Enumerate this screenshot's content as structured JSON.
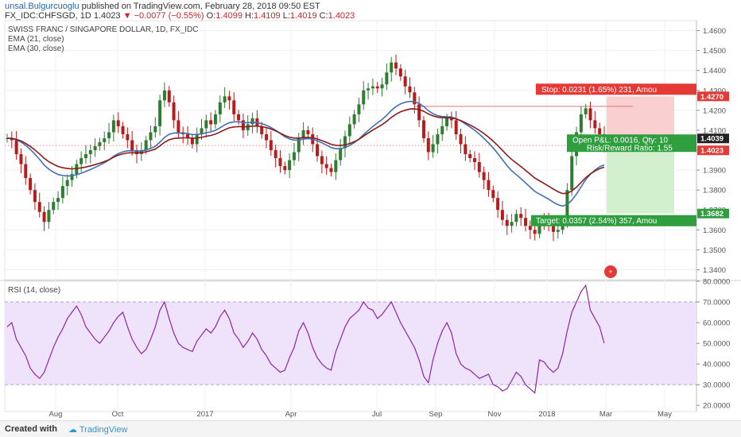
{
  "header": {
    "user": "unsal.Bulgurcuoglu",
    "published": "published on TradingView.com, February 28, 2018 09:50 EST",
    "symbol": "FX_IDC:CHFSGD, 1D",
    "last": "1.4023",
    "change": "−0.0077 (−0.55%)",
    "o_label": "O:",
    "o": "1.4099",
    "h_label": "H:",
    "h": "1.4109",
    "l_label": "L:",
    "l": "1.4019",
    "c_label": "C:",
    "c": "1.4023"
  },
  "footer": {
    "created": "Created with",
    "brand": "TradingView"
  },
  "chart_data": [
    {
      "type": "candlestick",
      "title": "SWISS FRANC / SINGAPORE DOLLAR, 1D, FX_IDC",
      "indicators": [
        "EMA (21, close)",
        "EMA (30, close)"
      ],
      "ylim": [
        1.335,
        1.465
      ],
      "ytick_labels": [
        "1.4600",
        "1.4500",
        "1.4400",
        "1.4300",
        "1.4200",
        "1.4100",
        "1.4000",
        "1.3900",
        "1.3800",
        "1.3700",
        "1.3600",
        "1.3500",
        "1.3400"
      ],
      "yticks": [
        1.46,
        1.45,
        1.44,
        1.43,
        1.42,
        1.41,
        1.4,
        1.39,
        1.38,
        1.37,
        1.36,
        1.35,
        1.34
      ],
      "xtick_labels": [
        "Aug",
        "Oct",
        "2017",
        "Apr",
        "Jul",
        "Sep",
        "Nov",
        "2018",
        "Mar",
        "May"
      ],
      "close_series": [
        1.406,
        1.405,
        1.398,
        1.393,
        1.386,
        1.38,
        1.374,
        1.369,
        1.364,
        1.37,
        1.374,
        1.376,
        1.382,
        1.385,
        1.388,
        1.393,
        1.396,
        1.398,
        1.4,
        1.402,
        1.404,
        1.406,
        1.409,
        1.415,
        1.412,
        1.408,
        1.405,
        1.4,
        1.398,
        1.4,
        1.405,
        1.409,
        1.412,
        1.425,
        1.43,
        1.424,
        1.415,
        1.409,
        1.408,
        1.406,
        1.403,
        1.408,
        1.411,
        1.415,
        1.413,
        1.418,
        1.424,
        1.427,
        1.425,
        1.418,
        1.415,
        1.41,
        1.413,
        1.416,
        1.412,
        1.408,
        1.405,
        1.4,
        1.396,
        1.392,
        1.39,
        1.395,
        1.399,
        1.406,
        1.41,
        1.408,
        1.403,
        1.397,
        1.393,
        1.391,
        1.389,
        1.395,
        1.401,
        1.407,
        1.413,
        1.418,
        1.423,
        1.43,
        1.431,
        1.432,
        1.431,
        1.433,
        1.439,
        1.444,
        1.441,
        1.437,
        1.432,
        1.429,
        1.423,
        1.415,
        1.406,
        1.399,
        1.403,
        1.408,
        1.412,
        1.416,
        1.415,
        1.408,
        1.403,
        1.398,
        1.396,
        1.394,
        1.389,
        1.385,
        1.38,
        1.376,
        1.37,
        1.365,
        1.362,
        1.364,
        1.368,
        1.366,
        1.362,
        1.36,
        1.358,
        1.365,
        1.364,
        1.362,
        1.359,
        1.36,
        1.365,
        1.38,
        1.397,
        1.409,
        1.418,
        1.421,
        1.415,
        1.411,
        1.408,
        1.4023
      ],
      "last_price": "1.4023",
      "price_labels": [
        "1.4270",
        "1.4039",
        "1.4023",
        "1.3682"
      ],
      "position": {
        "stop_label": "Stop: 0.0231 (1.65%) 231, Amou",
        "stop_price": 1.427,
        "entry_price": 1.4039,
        "target_label": "Target: 0.0357 (2.54%) 357, Amou",
        "target_price": 1.3682,
        "open_pl_label": "Open P&L: 0.0016, Qty: 10",
        "rr_label": "Risk/Reward Ratio: 1.55"
      },
      "resistance_level": 1.422
    },
    {
      "type": "line",
      "title": "RSI (14, close)",
      "ylim": [
        17,
        80
      ],
      "yticks": [
        80,
        70,
        60,
        50,
        40,
        30,
        20
      ],
      "ytick_labels": [
        "80.0000",
        "70.0000",
        "60.0000",
        "50.0000",
        "40.0000",
        "30.0000",
        "20.0000"
      ],
      "band": [
        30,
        70
      ],
      "values": [
        58,
        60,
        52,
        48,
        44,
        38,
        35,
        33,
        36,
        42,
        48,
        53,
        57,
        62,
        65,
        68,
        64,
        58,
        55,
        52,
        50,
        53,
        56,
        60,
        63,
        65,
        58,
        52,
        48,
        45,
        47,
        52,
        58,
        66,
        70,
        62,
        55,
        50,
        48,
        47,
        46,
        51,
        54,
        57,
        55,
        58,
        63,
        66,
        62,
        55,
        52,
        48,
        51,
        55,
        52,
        47,
        44,
        40,
        38,
        36,
        37,
        43,
        48,
        56,
        60,
        55,
        48,
        43,
        40,
        38,
        37,
        46,
        52,
        58,
        62,
        64,
        66,
        70,
        67,
        66,
        62,
        64,
        67,
        70,
        65,
        60,
        56,
        52,
        48,
        42,
        34,
        31,
        42,
        50,
        56,
        60,
        55,
        45,
        40,
        38,
        37,
        35,
        33,
        34,
        35,
        30,
        29,
        27,
        28,
        32,
        36,
        34,
        30,
        28,
        26,
        42,
        41,
        38,
        36,
        38,
        45,
        56,
        65,
        70,
        75,
        78,
        66,
        62,
        58,
        50
      ]
    }
  ]
}
